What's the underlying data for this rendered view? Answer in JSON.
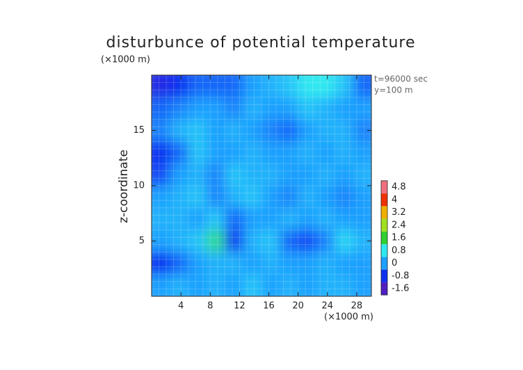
{
  "chart_data": {
    "type": "contour",
    "title": "disturbunce of potential temperature",
    "x_unit_label": "(×1000 m)",
    "y_unit_label": "(×1000 m)",
    "ylabel": "z-coordinate",
    "annotations": [
      "t=96000 sec",
      "y=100 m"
    ],
    "xlim": [
      0,
      30
    ],
    "ylim": [
      0,
      20
    ],
    "xticks": [
      4,
      8,
      12,
      16,
      20,
      24,
      28
    ],
    "yticks": [
      5,
      10,
      15
    ],
    "x": [
      1.25,
      3.75,
      6.25,
      8.75,
      11.25,
      13.75,
      16.25,
      18.75,
      21.25,
      23.75,
      26.25,
      28.75
    ],
    "y": [
      19,
      17,
      15,
      13,
      11,
      9,
      7,
      5,
      3,
      1
    ],
    "z": [
      [
        -1,
        -0.8,
        -0.4,
        -0.4,
        -0.4,
        0,
        0.2,
        0.4,
        0.8,
        0.8,
        0.4,
        -0.4
      ],
      [
        -0.4,
        -0.2,
        0,
        0,
        -0.2,
        0.2,
        0,
        0,
        0.4,
        0.2,
        0,
        0
      ],
      [
        -0.2,
        0.2,
        0.4,
        0,
        0.2,
        0,
        -0.2,
        -0.4,
        0,
        0.2,
        0.2,
        -0.2
      ],
      [
        -0.8,
        -0.4,
        0.4,
        0,
        0,
        0.2,
        0,
        0,
        0.2,
        0,
        0.2,
        0
      ],
      [
        -0.6,
        0,
        0.2,
        -0.2,
        0.4,
        0.2,
        0.2,
        0,
        0,
        0.2,
        0,
        0.2
      ],
      [
        0,
        0.2,
        0.4,
        -0.2,
        0.2,
        0.4,
        0,
        -0.2,
        0.2,
        0,
        -0.2,
        0
      ],
      [
        0.2,
        0.2,
        0,
        0.4,
        -0.4,
        0,
        0,
        0.2,
        0,
        0.2,
        0,
        0
      ],
      [
        0,
        0.2,
        0.4,
        1.2,
        -0.8,
        0.2,
        0.4,
        -0.4,
        -0.6,
        -0.2,
        0.6,
        0.2
      ],
      [
        -0.8,
        -0.4,
        0,
        0.2,
        0.2,
        0,
        0.2,
        0,
        0,
        0.2,
        0,
        0
      ],
      [
        0,
        0.2,
        0,
        0.2,
        0,
        0.4,
        0,
        0.2,
        0,
        0.2,
        0.2,
        0
      ]
    ],
    "colorbar": {
      "ticks": [
        -1.6,
        -0.8,
        0,
        0.8,
        1.6,
        2.4,
        3.2,
        4,
        4.8
      ],
      "colors": [
        "#5020c0",
        "#1030f0",
        "#1ea0ff",
        "#30e8f0",
        "#30d030",
        "#a0e020",
        "#f0b000",
        "#f03000",
        "#f07080"
      ]
    }
  }
}
